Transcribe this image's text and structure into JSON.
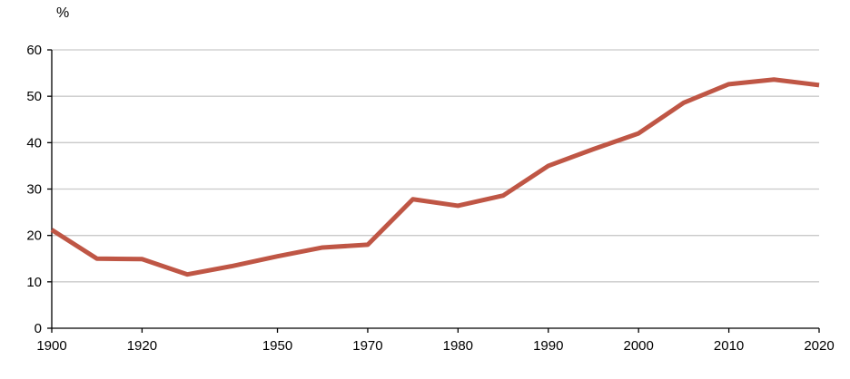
{
  "chart_data": {
    "type": "line",
    "title": "",
    "unit_label": "%",
    "xlabel": "",
    "ylabel": "%",
    "x": [
      1900,
      1910,
      1920,
      1930,
      1940,
      1950,
      1960,
      1970,
      1975,
      1980,
      1985,
      1990,
      1995,
      2000,
      2005,
      2010,
      2015,
      2020
    ],
    "values": [
      21.2,
      15.0,
      14.9,
      11.6,
      13.4,
      15.5,
      17.4,
      18.0,
      27.8,
      26.4,
      28.6,
      35.0,
      38.6,
      42.0,
      48.6,
      52.6,
      53.6,
      52.4
    ],
    "x_tick_labels": [
      "1900",
      "1920",
      "1950",
      "1970",
      "1980",
      "1990",
      "2000",
      "2010",
      "2020"
    ],
    "y_ticks": [
      0,
      10,
      20,
      30,
      40,
      50,
      60
    ],
    "ylim": [
      0,
      60
    ],
    "grid": "horizontal",
    "legend_position": "none",
    "line_color": "#bf5645",
    "grid_color": "#c9c9c9",
    "axis_color": "#000000"
  }
}
